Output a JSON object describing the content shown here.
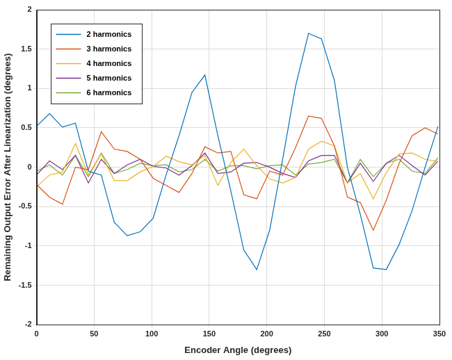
{
  "chart_data": {
    "type": "line",
    "x_label": "Encoder Angle (degrees)",
    "y_label": "Remaining Output Error After Linearization (degrees)",
    "x": [
      0,
      11.25,
      22.5,
      33.75,
      45,
      56.25,
      67.5,
      78.75,
      90,
      101.25,
      112.5,
      123.75,
      135,
      146.25,
      157.5,
      168.75,
      180,
      191.25,
      202.5,
      213.75,
      225,
      236.25,
      247.5,
      258.75,
      270,
      281.25,
      292.5,
      303.75,
      315,
      326.25,
      337.5,
      348.75
    ],
    "series": [
      {
        "name": "2 harmonics",
        "color": "#0072bd",
        "values": [
          0.52,
          0.68,
          0.51,
          0.56,
          -0.05,
          -0.1,
          -0.7,
          -0.87,
          -0.82,
          -0.65,
          -0.1,
          0.4,
          0.95,
          1.17,
          0.4,
          -0.3,
          -1.05,
          -1.3,
          -0.8,
          0.1,
          1.03,
          1.7,
          1.63,
          1.1,
          0.0,
          -0.6,
          -1.28,
          -1.3,
          -0.98,
          -0.55,
          0.0,
          0.52
        ]
      },
      {
        "name": "3 harmonics",
        "color": "#d95319",
        "values": [
          -0.22,
          -0.38,
          -0.47,
          0.0,
          -0.03,
          0.45,
          0.23,
          0.2,
          0.1,
          -0.14,
          -0.23,
          -0.32,
          -0.08,
          0.26,
          0.18,
          0.2,
          -0.35,
          -0.4,
          -0.05,
          -0.1,
          0.25,
          0.65,
          0.62,
          0.27,
          -0.38,
          -0.45,
          -0.8,
          -0.42,
          0.05,
          0.4,
          0.5,
          0.42
        ]
      },
      {
        "name": "4 harmonics",
        "color": "#edb120",
        "values": [
          -0.25,
          -0.1,
          -0.06,
          0.3,
          -0.1,
          0.17,
          -0.17,
          -0.17,
          -0.06,
          0.01,
          0.14,
          0.07,
          0.03,
          0.15,
          -0.23,
          0.06,
          0.23,
          0.02,
          -0.15,
          -0.2,
          -0.13,
          0.23,
          0.33,
          0.27,
          -0.2,
          -0.08,
          -0.4,
          -0.07,
          0.17,
          0.18,
          0.1,
          0.07
        ]
      },
      {
        "name": "5 harmonics",
        "color": "#7e2f8e",
        "values": [
          -0.1,
          0.08,
          -0.03,
          0.15,
          -0.2,
          0.1,
          -0.08,
          0.03,
          0.1,
          0.01,
          -0.01,
          -0.1,
          0.02,
          0.18,
          -0.08,
          -0.06,
          0.05,
          0.06,
          0.0,
          -0.08,
          -0.13,
          0.08,
          0.15,
          0.15,
          -0.2,
          0.05,
          -0.18,
          0.05,
          0.15,
          0.02,
          -0.1,
          0.08
        ]
      },
      {
        "name": "6 harmonics",
        "color": "#77ac30",
        "values": [
          -0.05,
          0.03,
          -0.1,
          0.15,
          -0.12,
          0.18,
          -0.08,
          -0.03,
          0.05,
          0.02,
          0.03,
          -0.06,
          -0.03,
          0.1,
          -0.05,
          0.02,
          0.02,
          -0.02,
          0.02,
          0.03,
          -0.1,
          0.04,
          0.06,
          0.1,
          -0.2,
          0.1,
          -0.12,
          0.05,
          0.1,
          -0.05,
          -0.08,
          0.12
        ]
      }
    ],
    "xlim": [
      0,
      350
    ],
    "xticks": [
      0,
      50,
      100,
      150,
      200,
      250,
      300,
      350
    ],
    "ylim": [
      -2,
      2
    ],
    "yticks": [
      -2,
      -1.5,
      -1,
      -0.5,
      0,
      0.5,
      1,
      1.5,
      2
    ],
    "grid": true,
    "legend": "upper left"
  }
}
